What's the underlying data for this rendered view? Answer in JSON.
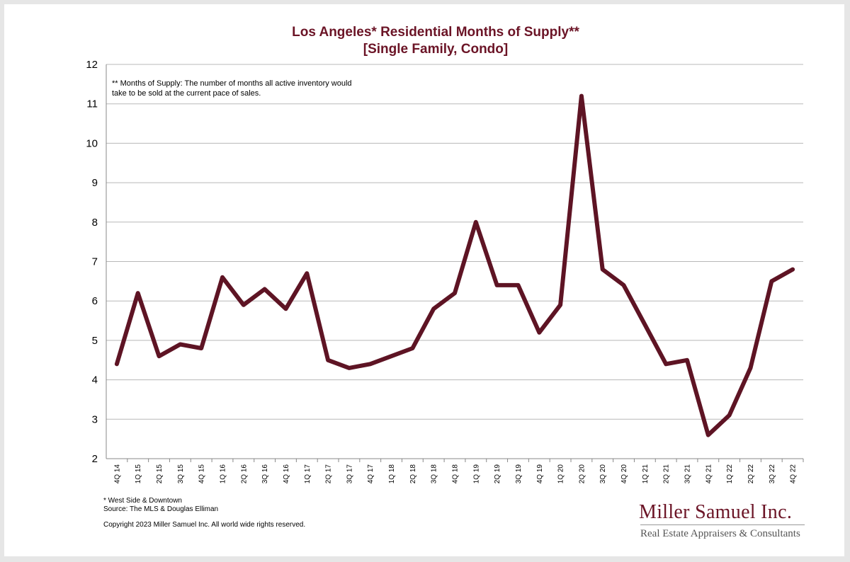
{
  "chart_data": {
    "type": "line",
    "title": "Los Angeles* Residential Months of Supply**",
    "subtitle": "[Single Family, Condo]",
    "annotation": "** Months of Supply: The number of months all active inventory would take to be sold at the current pace of sales.",
    "ylim": [
      2,
      12
    ],
    "yticks": [
      "2",
      "3",
      "4",
      "5",
      "6",
      "7",
      "8",
      "9",
      "10",
      "11",
      "12"
    ],
    "grid": true,
    "categories": [
      "4Q 14",
      "1Q 15",
      "2Q 15",
      "3Q 15",
      "4Q 15",
      "1Q 16",
      "2Q 16",
      "3Q 16",
      "4Q 16",
      "1Q 17",
      "2Q 17",
      "3Q 17",
      "4Q 17",
      "1Q 18",
      "2Q 18",
      "3Q 18",
      "4Q 18",
      "1Q 19",
      "2Q 19",
      "3Q 19",
      "4Q 19",
      "1Q 20",
      "2Q 20",
      "3Q 20",
      "4Q 20",
      "1Q 21",
      "2Q 21",
      "3Q 21",
      "4Q 21",
      "1Q 22",
      "2Q 22",
      "3Q 22",
      "4Q 22"
    ],
    "values": [
      4.4,
      6.2,
      4.6,
      4.9,
      4.8,
      6.6,
      5.9,
      6.3,
      5.8,
      6.7,
      4.5,
      4.3,
      4.4,
      4.6,
      4.8,
      5.8,
      6.2,
      8.0,
      6.4,
      6.4,
      5.2,
      5.9,
      11.2,
      6.8,
      6.4,
      5.4,
      4.4,
      4.5,
      2.6,
      3.1,
      4.3,
      6.5,
      6.8
    ],
    "line_color": "#5e1424"
  },
  "footer": {
    "note": "* West Side & Downtown",
    "source": "Source: The MLS & Douglas Elliman",
    "copyright": "Copyright 2023 Miller Samuel Inc.  All world wide rights reserved."
  },
  "brand": {
    "name": "Miller Samuel Inc.",
    "tagline": "Real Estate Appraisers & Consultants"
  }
}
